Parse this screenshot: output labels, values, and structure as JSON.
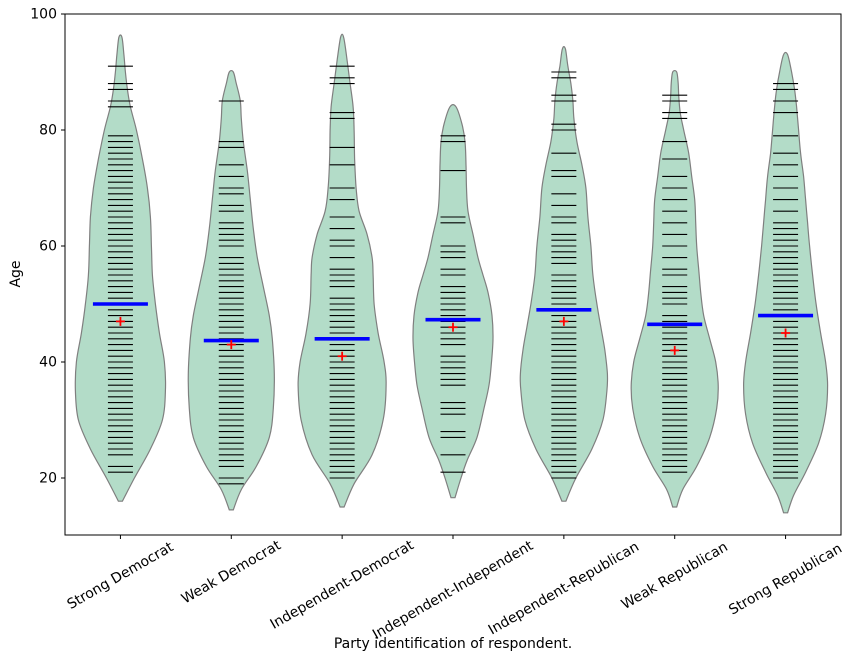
{
  "figure": {
    "xlabel": "Party identification of respondent.",
    "ylabel": "Age"
  },
  "chart_data": {
    "type": "violin",
    "title": "",
    "xlabel": "Party identification of respondent.",
    "ylabel": "Age",
    "ylim": [
      10.2,
      100
    ],
    "yticks": [
      20,
      40,
      60,
      80,
      100
    ],
    "grid": false,
    "legend": null,
    "x_tick_rotation_deg": 30,
    "categories": [
      "Strong Democrat",
      "Weak Democrat",
      "Independent-Democrat",
      "Independent-Independent",
      "Independent-Republican",
      "Weak Republican",
      "Strong Republican"
    ],
    "series": [
      {
        "label": "Strong Democrat",
        "mean": 50.0,
        "median": 47,
        "min": 16,
        "max": 96,
        "kde_profile": [
          [
            16,
            2
          ],
          [
            20,
            14
          ],
          [
            25,
            30
          ],
          [
            30,
            42
          ],
          [
            35,
            45
          ],
          [
            40,
            44
          ],
          [
            45,
            39
          ],
          [
            50,
            35
          ],
          [
            55,
            32
          ],
          [
            60,
            31
          ],
          [
            65,
            30
          ],
          [
            70,
            27
          ],
          [
            75,
            22
          ],
          [
            80,
            16
          ],
          [
            84,
            10
          ],
          [
            87,
            7
          ],
          [
            90,
            5
          ],
          [
            93,
            3.5
          ],
          [
            96,
            1.5
          ]
        ],
        "data_ages": [
          21,
          22,
          24,
          25,
          26,
          27,
          28,
          29,
          30,
          31,
          32,
          33,
          34,
          35,
          36,
          37,
          38,
          39,
          40,
          41,
          42,
          43,
          44,
          45,
          46,
          47,
          48,
          49,
          50,
          51,
          52,
          53,
          54,
          55,
          56,
          57,
          58,
          59,
          60,
          61,
          62,
          63,
          64,
          65,
          66,
          67,
          68,
          69,
          70,
          71,
          72,
          73,
          74,
          75,
          76,
          77,
          78,
          79,
          84,
          85,
          87,
          88,
          91
        ]
      },
      {
        "label": "Weak Democrat",
        "mean": 43.7,
        "median": 43,
        "min": 14.5,
        "max": 90,
        "kde_profile": [
          [
            14.5,
            2
          ],
          [
            18,
            10
          ],
          [
            22,
            25
          ],
          [
            27,
            38
          ],
          [
            32,
            42
          ],
          [
            38,
            43
          ],
          [
            44,
            41
          ],
          [
            48,
            38
          ],
          [
            53,
            32
          ],
          [
            58,
            26
          ],
          [
            63,
            22
          ],
          [
            68,
            19
          ],
          [
            73,
            16
          ],
          [
            78,
            12
          ],
          [
            82,
            10
          ],
          [
            85,
            9
          ],
          [
            88,
            5
          ],
          [
            90,
            2
          ]
        ],
        "data_ages": [
          19,
          20,
          22,
          23,
          24,
          25,
          26,
          27,
          28,
          29,
          30,
          31,
          32,
          33,
          34,
          35,
          36,
          37,
          38,
          39,
          40,
          41,
          42,
          43,
          44,
          45,
          46,
          47,
          48,
          49,
          50,
          51,
          52,
          53,
          54,
          55,
          56,
          57,
          58,
          60,
          61,
          62,
          63,
          64,
          66,
          67,
          69,
          70,
          72,
          74,
          77,
          78,
          85
        ]
      },
      {
        "label": "Independent-Democrat",
        "mean": 44.0,
        "median": 41,
        "min": 15,
        "max": 96,
        "kde_profile": [
          [
            15,
            2
          ],
          [
            19,
            12
          ],
          [
            24,
            30
          ],
          [
            30,
            41
          ],
          [
            36,
            44
          ],
          [
            40,
            42
          ],
          [
            45,
            36
          ],
          [
            50,
            32
          ],
          [
            55,
            31
          ],
          [
            58,
            30
          ],
          [
            62,
            25
          ],
          [
            66,
            17
          ],
          [
            70,
            14
          ],
          [
            75,
            12.5
          ],
          [
            80,
            12
          ],
          [
            84,
            11
          ],
          [
            88,
            8
          ],
          [
            92,
            5
          ],
          [
            96,
            1.5
          ]
        ],
        "data_ages": [
          20,
          21,
          22,
          23,
          24,
          25,
          26,
          27,
          28,
          29,
          30,
          31,
          32,
          33,
          34,
          35,
          36,
          37,
          38,
          39,
          40,
          41,
          42,
          43,
          44,
          45,
          46,
          47,
          48,
          49,
          50,
          51,
          53,
          54,
          55,
          56,
          58,
          60,
          61,
          63,
          65,
          68,
          70,
          74,
          77,
          82,
          83,
          88,
          89,
          91
        ]
      },
      {
        "label": "Independent-Independent",
        "mean": 47.3,
        "median": 46,
        "min": 16.6,
        "max": 84,
        "kde_profile": [
          [
            16.6,
            2
          ],
          [
            20,
            8
          ],
          [
            23,
            14
          ],
          [
            27,
            24
          ],
          [
            32,
            31
          ],
          [
            36,
            36
          ],
          [
            40,
            38.5
          ],
          [
            44,
            40
          ],
          [
            48,
            39
          ],
          [
            52,
            35
          ],
          [
            55,
            30
          ],
          [
            58,
            25
          ],
          [
            62,
            20
          ],
          [
            66,
            15
          ],
          [
            70,
            13.5
          ],
          [
            74,
            13
          ],
          [
            78,
            12
          ],
          [
            81,
            9
          ],
          [
            84,
            3
          ]
        ],
        "data_ages": [
          21,
          24,
          27,
          28,
          31,
          32,
          33,
          36,
          37,
          38,
          39,
          40,
          41,
          43,
          44,
          45,
          46,
          47,
          48,
          49,
          50,
          51,
          52,
          53,
          55,
          56,
          58,
          59,
          60,
          64,
          65,
          73,
          78,
          79
        ]
      },
      {
        "label": "Independent-Republican",
        "mean": 49.0,
        "median": 47,
        "min": 16,
        "max": 94,
        "kde_profile": [
          [
            16,
            2
          ],
          [
            20,
            12
          ],
          [
            25,
            28
          ],
          [
            30,
            39
          ],
          [
            35,
            43
          ],
          [
            38,
            43.5
          ],
          [
            42,
            41
          ],
          [
            46,
            37
          ],
          [
            50,
            33
          ],
          [
            55,
            29
          ],
          [
            60,
            27
          ],
          [
            65,
            24
          ],
          [
            70,
            22
          ],
          [
            74,
            18
          ],
          [
            78,
            13
          ],
          [
            82,
            10
          ],
          [
            85,
            9
          ],
          [
            88,
            7
          ],
          [
            91,
            4
          ],
          [
            94,
            1.5
          ]
        ],
        "data_ages": [
          20,
          21,
          22,
          23,
          24,
          25,
          26,
          27,
          28,
          29,
          30,
          31,
          32,
          33,
          34,
          35,
          36,
          37,
          38,
          39,
          40,
          41,
          42,
          43,
          44,
          45,
          46,
          47,
          48,
          49,
          50,
          51,
          52,
          53,
          54,
          55,
          57,
          58,
          59,
          60,
          61,
          62,
          64,
          65,
          67,
          69,
          72,
          73,
          76,
          80,
          81,
          85,
          86,
          89,
          90
        ]
      },
      {
        "label": "Weak Republican",
        "mean": 46.5,
        "median": 42,
        "min": 15,
        "max": 90,
        "kde_profile": [
          [
            15,
            2
          ],
          [
            18,
            8
          ],
          [
            22,
            22
          ],
          [
            27,
            35
          ],
          [
            32,
            42
          ],
          [
            36,
            43.5
          ],
          [
            40,
            41
          ],
          [
            44,
            35
          ],
          [
            48,
            29
          ],
          [
            52,
            26
          ],
          [
            56,
            24
          ],
          [
            60,
            22
          ],
          [
            64,
            21
          ],
          [
            68,
            20
          ],
          [
            72,
            17
          ],
          [
            76,
            14
          ],
          [
            80,
            9
          ],
          [
            83,
            5.5
          ],
          [
            86,
            4
          ],
          [
            88,
            3.5
          ],
          [
            90,
            2
          ]
        ],
        "data_ages": [
          21,
          22,
          23,
          24,
          25,
          26,
          27,
          28,
          29,
          30,
          31,
          32,
          33,
          34,
          35,
          36,
          37,
          38,
          39,
          40,
          41,
          42,
          43,
          44,
          45,
          46,
          47,
          48,
          50,
          51,
          52,
          53,
          55,
          56,
          58,
          60,
          62,
          64,
          66,
          68,
          70,
          72,
          75,
          78,
          82,
          83,
          85,
          86
        ]
      },
      {
        "label": "Strong Republican",
        "mean": 48.0,
        "median": 45,
        "min": 14,
        "max": 93,
        "kde_profile": [
          [
            14,
            2
          ],
          [
            17,
            8
          ],
          [
            21,
            20
          ],
          [
            26,
            33
          ],
          [
            31,
            40
          ],
          [
            36,
            42
          ],
          [
            40,
            40
          ],
          [
            45,
            35
          ],
          [
            50,
            30.5
          ],
          [
            55,
            27
          ],
          [
            60,
            24
          ],
          [
            64,
            22
          ],
          [
            68,
            20
          ],
          [
            72,
            18
          ],
          [
            76,
            15
          ],
          [
            80,
            13
          ],
          [
            84,
            11
          ],
          [
            87,
            9
          ],
          [
            90,
            6
          ],
          [
            93,
            2
          ]
        ],
        "data_ages": [
          20,
          21,
          22,
          23,
          24,
          25,
          26,
          27,
          28,
          29,
          30,
          31,
          32,
          33,
          34,
          35,
          36,
          37,
          38,
          39,
          40,
          41,
          42,
          43,
          44,
          45,
          46,
          47,
          48,
          49,
          50,
          51,
          52,
          53,
          54,
          55,
          56,
          57,
          58,
          59,
          60,
          61,
          62,
          63,
          64,
          66,
          68,
          70,
          72,
          74,
          76,
          79,
          83,
          85,
          87,
          88
        ]
      }
    ],
    "style": {
      "violin_fill": "#b3dcc8",
      "violin_edge": "#7f7f7f",
      "stick_color": "#000000",
      "mean_color": "#0000ff",
      "median_color": "#ff0000",
      "axis_color": "#000000",
      "background": "#ffffff"
    }
  }
}
